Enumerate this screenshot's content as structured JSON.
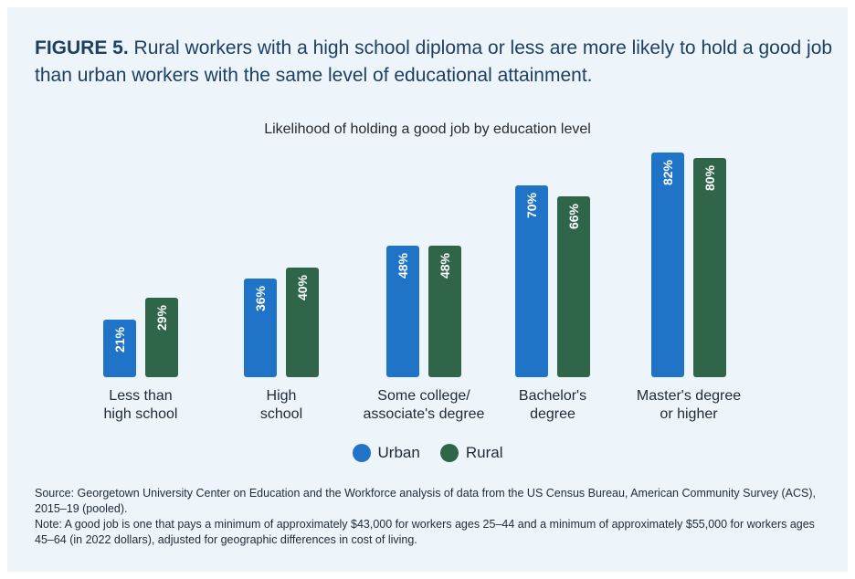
{
  "heading": {
    "figure_label": "FIGURE 5.",
    "text": "Rural workers with a high school diploma or less are more likely to hold a good job than urban workers with the same level of educational attainment."
  },
  "colors": {
    "urban": "#1f74c8",
    "rural": "#2f6549",
    "background": "#edf5fb",
    "text": "#1e2a36"
  },
  "chart_data": {
    "type": "bar",
    "title": "Likelihood of holding a good job by education level",
    "categories": [
      [
        "Less than",
        "high school"
      ],
      [
        "High",
        "school"
      ],
      [
        "Some college/",
        "associate's degree"
      ],
      [
        "Bachelor's",
        "degree"
      ],
      [
        "Master's degree",
        "or higher"
      ]
    ],
    "series": [
      {
        "name": "Urban",
        "values": [
          21,
          36,
          48,
          70,
          82
        ],
        "labels": [
          "21%",
          "36%",
          "48%",
          "70%",
          "82%"
        ]
      },
      {
        "name": "Rural",
        "values": [
          29,
          40,
          48,
          66,
          80
        ],
        "labels": [
          "29%",
          "40%",
          "48%",
          "66%",
          "80%"
        ]
      }
    ],
    "ylim": [
      0,
      100
    ],
    "grid": false,
    "legend": "bottom-center"
  },
  "legend": {
    "urban_label": "Urban",
    "rural_label": "Rural"
  },
  "notes": {
    "source": "Source: Georgetown University Center on Education and the Workforce analysis of data from the US Census Bureau, American Community Survey (ACS), 2015–19 (pooled).",
    "note": "Note: A good job is one that pays a minimum of approximately $43,000 for workers ages 25–44 and a minimum of approximately $55,000 for workers ages 45–64 (in 2022 dollars), adjusted for geographic differences in cost of living."
  }
}
